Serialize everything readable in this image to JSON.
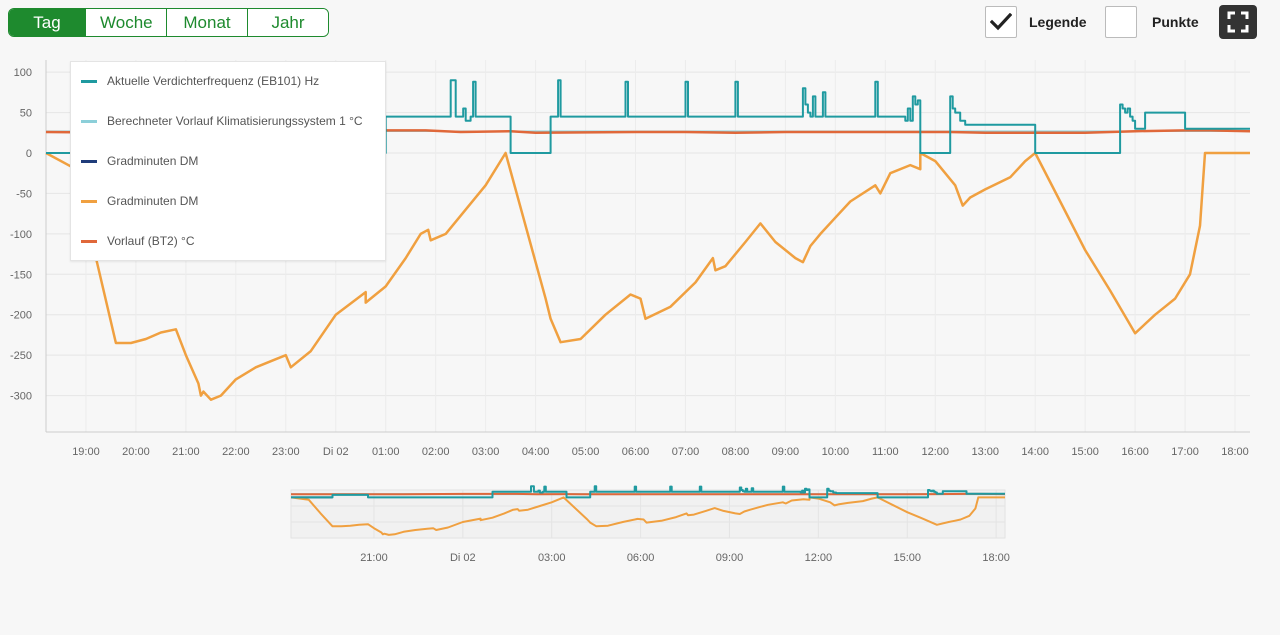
{
  "tabs": [
    {
      "label": "Tag",
      "active": true
    },
    {
      "label": "Woche",
      "active": false
    },
    {
      "label": "Monat",
      "active": false
    },
    {
      "label": "Jahr",
      "active": false
    }
  ],
  "controls": {
    "legend_label": "Legende",
    "legend_checked": true,
    "points_label": "Punkte",
    "points_checked": false,
    "fullscreen_icon": "fullscreen-icon"
  },
  "colors": {
    "accent": "#1e8a2e",
    "teal": "#1f9aa0",
    "lightblue": "#8ccfd9",
    "navy": "#1f3c7a",
    "orange": "#f0a040",
    "red": "#e0683a"
  },
  "chart_data": {
    "type": "line",
    "xlabel": "",
    "ylabel": "",
    "x_ticks": [
      "19:00",
      "20:00",
      "21:00",
      "22:00",
      "23:00",
      "Di 02",
      "01:00",
      "02:00",
      "03:00",
      "04:00",
      "05:00",
      "06:00",
      "07:00",
      "08:00",
      "09:00",
      "10:00",
      "11:00",
      "12:00",
      "13:00",
      "14:00",
      "15:00",
      "16:00",
      "17:00",
      "18:00"
    ],
    "x_range_hours": [
      18.2,
      42.3
    ],
    "ylim": [
      -345,
      115
    ],
    "y_ticks": [
      100,
      50,
      0,
      -50,
      -100,
      -150,
      -200,
      -250,
      -300
    ],
    "grid": true,
    "legend_position": "top-left",
    "series": [
      {
        "name": "Aktuelle Verdichterfrequenz (EB101) Hz",
        "color_key": "teal",
        "step": true,
        "x": [
          18.2,
          19.6,
          19.6,
          20.8,
          20.8,
          21.3,
          25.0,
          25.0,
          26.2,
          26.25,
          26.3,
          26.4,
          26.5,
          26.55,
          26.6,
          26.7,
          26.75,
          26.8,
          27.4,
          27.5,
          27.5,
          28.3,
          28.3,
          28.35,
          28.4,
          28.45,
          28.5,
          29.7,
          29.75,
          29.8,
          29.85,
          29.9,
          30.9,
          30.95,
          31.0,
          31.05,
          31.1,
          31.9,
          31.95,
          32.0,
          32.05,
          32.1,
          32.9,
          33.0,
          33.1,
          33.2,
          33.35,
          33.4,
          33.45,
          33.5,
          33.55,
          33.6,
          33.7,
          33.75,
          33.8,
          34.7,
          34.75,
          34.8,
          34.85,
          34.9,
          35.3,
          35.4,
          35.45,
          35.5,
          35.55,
          35.6,
          35.65,
          35.7,
          35.7,
          36.3,
          36.3,
          36.35,
          36.4,
          36.5,
          36.6,
          36.7,
          36.8,
          37.0,
          38.0,
          38.0,
          39.7,
          39.7,
          39.75,
          39.8,
          39.85,
          39.9,
          39.95,
          40.0,
          40.1,
          40.2,
          40.3,
          40.4,
          40.6,
          40.7,
          41.0,
          41.3,
          41.3,
          42.3
        ],
        "y": [
          0,
          0,
          20,
          20,
          0,
          0,
          0,
          45,
          45,
          45,
          90,
          45,
          45,
          55,
          40,
          45,
          88,
          45,
          45,
          45,
          0,
          0,
          45,
          45,
          45,
          90,
          45,
          45,
          45,
          88,
          45,
          45,
          45,
          45,
          88,
          45,
          45,
          45,
          45,
          88,
          45,
          45,
          45,
          45,
          45,
          45,
          80,
          60,
          50,
          45,
          70,
          45,
          45,
          75,
          45,
          45,
          45,
          88,
          45,
          45,
          45,
          40,
          55,
          40,
          70,
          60,
          65,
          65,
          0,
          0,
          70,
          55,
          50,
          40,
          35,
          35,
          35,
          35,
          30,
          0,
          0,
          60,
          55,
          50,
          55,
          45,
          40,
          30,
          30,
          50,
          50,
          50,
          50,
          50,
          30,
          30,
          30,
          30
        ]
      },
      {
        "name": "Berechneter Vorlauf Klimatisierungssystem 1 °C",
        "color_key": "lightblue",
        "step": false,
        "x": [
          18.2,
          42.3
        ],
        "y": [
          27,
          27
        ]
      },
      {
        "name": "Gradminuten DM",
        "color_key": "navy",
        "step": false,
        "x": [
          18.2,
          19.6
        ],
        "y": [
          0,
          0
        ]
      },
      {
        "name": "Gradminuten DM",
        "color_key": "orange",
        "step": false,
        "x": [
          18.2,
          18.8,
          19.2,
          19.6,
          19.9,
          20.2,
          20.5,
          20.8,
          21.0,
          21.25,
          21.3,
          21.35,
          21.5,
          21.7,
          22.0,
          22.4,
          22.8,
          23.0,
          23.1,
          23.5,
          24.0,
          24.6,
          24.6,
          25.0,
          25.4,
          25.7,
          25.85,
          25.9,
          26.2,
          26.6,
          27.0,
          27.4,
          28.2,
          28.3,
          28.5,
          28.9,
          29.4,
          29.9,
          30.1,
          30.2,
          30.7,
          31.2,
          31.55,
          31.6,
          31.8,
          32.2,
          32.5,
          32.8,
          33.2,
          33.35,
          33.5,
          33.7,
          34.0,
          34.3,
          34.8,
          34.9,
          35.1,
          35.5,
          35.7,
          35.7,
          36.0,
          36.4,
          36.55,
          36.7,
          37.0,
          37.5,
          37.8,
          38.0,
          38.5,
          39.0,
          39.5,
          40.0,
          40.4,
          40.6,
          40.8,
          41.1,
          41.3,
          41.4,
          42.3
        ],
        "y": [
          0,
          -20,
          -130,
          -235,
          -235,
          -230,
          -222,
          -218,
          -250,
          -285,
          -300,
          -295,
          -305,
          -300,
          -280,
          -265,
          -255,
          -250,
          -265,
          -245,
          -200,
          -172,
          -185,
          -165,
          -130,
          -100,
          -95,
          -108,
          -100,
          -70,
          -40,
          0,
          -180,
          -205,
          -234,
          -230,
          -200,
          -175,
          -180,
          -205,
          -190,
          -160,
          -130,
          -145,
          -140,
          -110,
          -87,
          -110,
          -130,
          -135,
          -115,
          -100,
          -80,
          -60,
          -40,
          -50,
          -25,
          -15,
          -20,
          0,
          -10,
          -40,
          -65,
          -55,
          -45,
          -30,
          -10,
          0,
          -60,
          -120,
          -170,
          -223,
          -200,
          -190,
          -180,
          -150,
          -90,
          0,
          0
        ]
      },
      {
        "name": "Vorlauf (BT2) °C",
        "color_key": "red",
        "step": false,
        "x": [
          18.2,
          20.0,
          22.0,
          24.0,
          25.0,
          25.8,
          26.5,
          27.5,
          28.0,
          30.0,
          31.0,
          32.0,
          33.0,
          34.0,
          35.0,
          36.0,
          36.3,
          37.0,
          38.0,
          38.5,
          39.0,
          40.0,
          41.0,
          41.5,
          42.3
        ],
        "y": [
          26,
          25,
          26,
          28,
          28,
          28,
          26,
          27,
          25,
          26,
          26,
          25,
          26,
          26,
          26,
          26,
          26,
          25,
          25,
          25,
          25,
          27,
          28,
          28,
          27
        ]
      }
    ],
    "navigator": {
      "x_ticks": [
        "21:00",
        "Di 02",
        "03:00",
        "06:00",
        "09:00",
        "12:00",
        "15:00",
        "18:00"
      ]
    }
  }
}
